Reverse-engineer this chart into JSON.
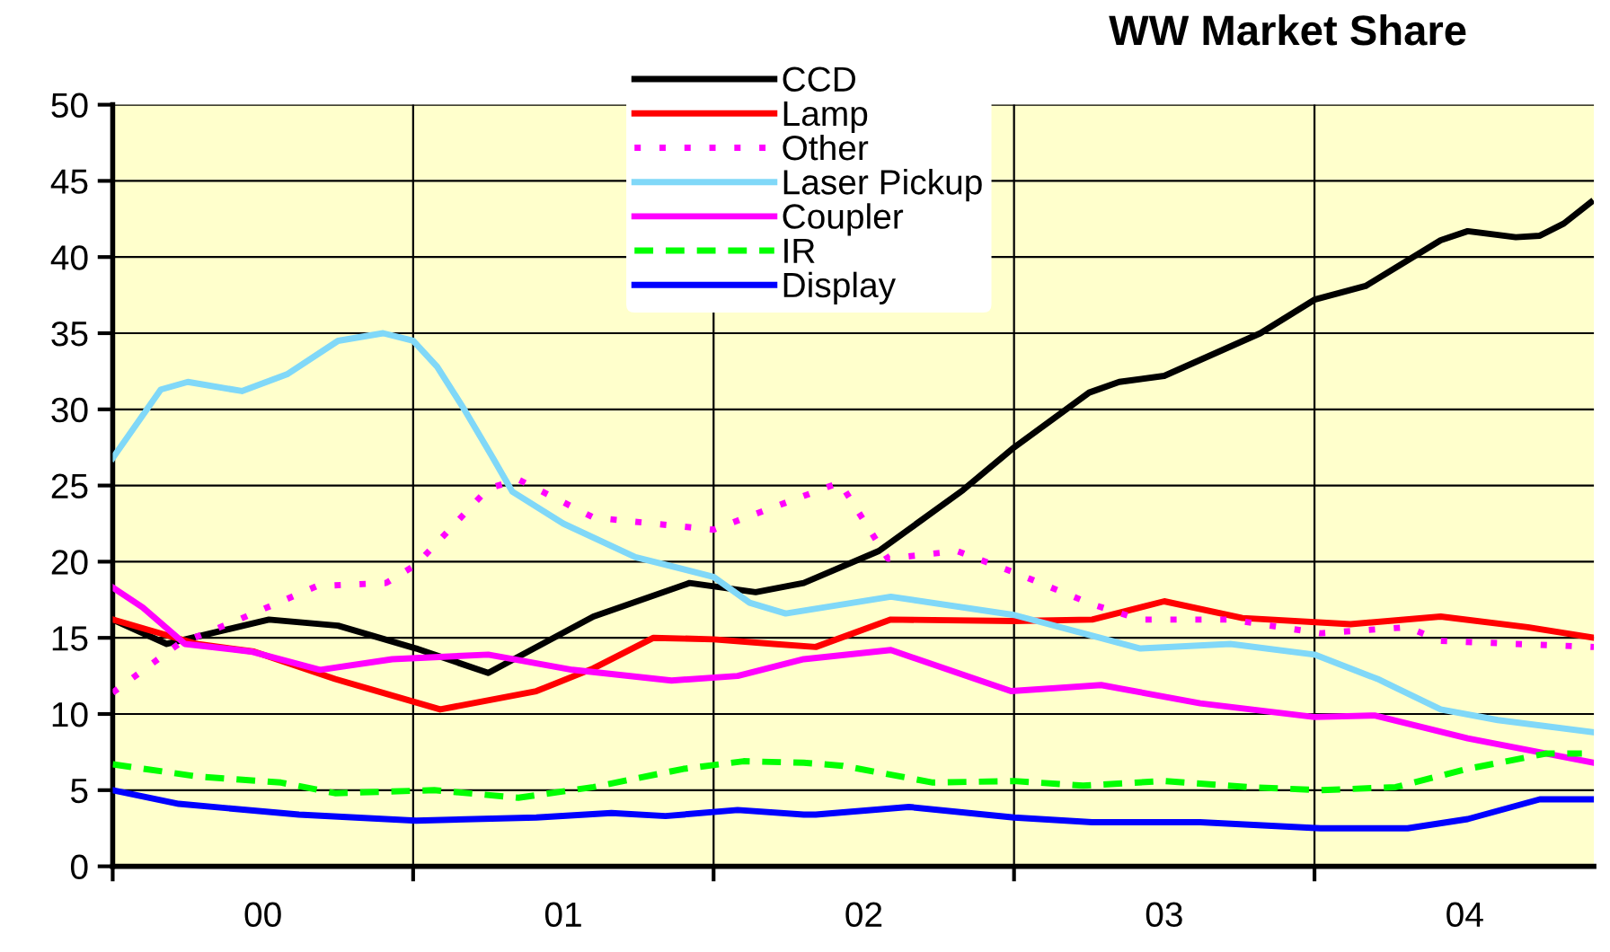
{
  "chart_data": {
    "type": "line",
    "title": "WW Market Share",
    "xlim": [
      0,
      4.93
    ],
    "ylim": [
      0,
      50
    ],
    "yticks": [
      0,
      5,
      10,
      15,
      20,
      25,
      30,
      35,
      40,
      45,
      50
    ],
    "xticks": [
      {
        "value": 0,
        "label": null
      },
      {
        "value": 0.5,
        "label": "00"
      },
      {
        "value": 1,
        "label": null
      },
      {
        "value": 1.5,
        "label": "01"
      },
      {
        "value": 2,
        "label": null
      },
      {
        "value": 2.5,
        "label": "02"
      },
      {
        "value": 3,
        "label": null
      },
      {
        "value": 3.5,
        "label": "03"
      },
      {
        "value": 4,
        "label": null
      },
      {
        "value": 4.5,
        "label": "04"
      }
    ],
    "grid": true,
    "legend": "top",
    "marker": "none",
    "series": [
      {
        "name": "CCD",
        "color": "#000000",
        "line_style": "solid",
        "x": [
          0,
          0.18,
          0.52,
          0.75,
          1.01,
          1.25,
          1.6,
          1.92,
          2.14,
          2.3,
          2.55,
          2.83,
          3.0,
          3.25,
          3.35,
          3.5,
          3.82,
          4.0,
          4.17,
          4.42,
          4.51,
          4.67,
          4.75,
          4.83,
          4.92
        ],
        "values": [
          16.2,
          14.6,
          16.2,
          15.8,
          14.3,
          12.7,
          16.4,
          18.6,
          18.0,
          18.6,
          20.7,
          24.7,
          27.5,
          31.1,
          31.8,
          32.2,
          35.0,
          37.2,
          38.1,
          41.1,
          41.7,
          41.3,
          41.4,
          42.2,
          43.6
        ]
      },
      {
        "name": "Lamp",
        "color": "#ff0000",
        "line_style": "solid",
        "x": [
          0,
          0.28,
          0.47,
          0.74,
          1.09,
          1.41,
          1.6,
          1.8,
          2.0,
          2.2,
          2.34,
          2.59,
          3.0,
          3.26,
          3.5,
          3.76,
          4.12,
          4.42,
          4.71,
          4.93
        ],
        "values": [
          16.2,
          14.6,
          14.1,
          12.3,
          10.3,
          11.5,
          13.0,
          15.0,
          14.9,
          14.6,
          14.4,
          16.2,
          16.1,
          16.2,
          17.4,
          16.3,
          15.9,
          16.4,
          15.7,
          15.0
        ]
      },
      {
        "name": "Other",
        "color": "#ff00ff",
        "line_style": "dotted",
        "x": [
          0,
          0.22,
          0.42,
          0.68,
          0.91,
          1.01,
          1.25,
          1.35,
          1.6,
          2.0,
          2.42,
          2.58,
          2.81,
          3.0,
          3.26,
          3.42,
          3.72,
          4.02,
          4.31,
          4.42,
          4.93
        ],
        "values": [
          11.4,
          14.6,
          16.2,
          18.4,
          18.6,
          19.8,
          24.8,
          25.4,
          22.9,
          22.1,
          25.2,
          20.2,
          20.7,
          19.3,
          17.2,
          16.2,
          16.2,
          15.3,
          15.7,
          14.8,
          14.4
        ]
      },
      {
        "name": "Laser Pickup",
        "color": "#80d8f8",
        "line_style": "solid",
        "x": [
          0,
          0.16,
          0.25,
          0.43,
          0.58,
          0.75,
          0.9,
          1.0,
          1.08,
          1.17,
          1.26,
          1.33,
          1.5,
          1.74,
          2.0,
          2.12,
          2.24,
          2.59,
          3.0,
          3.23,
          3.42,
          3.72,
          4.0,
          4.21,
          4.42,
          4.61,
          4.93
        ],
        "values": [
          26.8,
          31.3,
          31.8,
          31.2,
          32.3,
          34.5,
          35.0,
          34.5,
          32.8,
          30.0,
          27.0,
          24.6,
          22.5,
          20.3,
          19.0,
          17.3,
          16.6,
          17.7,
          16.5,
          15.3,
          14.3,
          14.6,
          13.9,
          12.3,
          10.3,
          9.6,
          8.8
        ]
      },
      {
        "name": "Coupler",
        "color": "#ff00ff",
        "line_style": "solid",
        "x": [
          0,
          0.1,
          0.24,
          0.46,
          0.69,
          0.93,
          1.25,
          1.53,
          1.86,
          2.08,
          2.3,
          2.59,
          2.99,
          3.29,
          3.62,
          4.0,
          4.2,
          4.51,
          4.93
        ],
        "values": [
          18.3,
          17.0,
          14.6,
          14.1,
          12.9,
          13.6,
          13.9,
          12.9,
          12.2,
          12.5,
          13.6,
          14.2,
          11.5,
          11.9,
          10.7,
          9.8,
          9.9,
          8.4,
          6.8
        ]
      },
      {
        "name": "IR",
        "color": "#00ff00",
        "line_style": "dashed",
        "x": [
          0,
          0.28,
          0.56,
          0.74,
          1.07,
          1.35,
          1.6,
          1.9,
          2.1,
          2.3,
          2.43,
          2.73,
          3.0,
          3.23,
          3.5,
          3.78,
          4.02,
          4.27,
          4.51,
          4.77,
          4.89
        ],
        "values": [
          6.7,
          5.9,
          5.5,
          4.8,
          5.0,
          4.5,
          5.2,
          6.4,
          6.9,
          6.8,
          6.6,
          5.5,
          5.6,
          5.3,
          5.6,
          5.2,
          5.0,
          5.2,
          6.4,
          7.4,
          7.4
        ]
      },
      {
        "name": "Display",
        "color": "#0000ff",
        "line_style": "solid",
        "x": [
          0,
          0.22,
          0.62,
          1.01,
          1.41,
          1.66,
          1.84,
          2.08,
          2.3,
          2.34,
          2.65,
          3.0,
          3.26,
          3.62,
          4.02,
          4.31,
          4.51,
          4.75,
          4.93
        ],
        "values": [
          5.0,
          4.1,
          3.4,
          3.0,
          3.2,
          3.5,
          3.3,
          3.7,
          3.4,
          3.4,
          3.9,
          3.2,
          2.9,
          2.9,
          2.5,
          2.5,
          3.1,
          4.4,
          4.4
        ]
      }
    ]
  }
}
